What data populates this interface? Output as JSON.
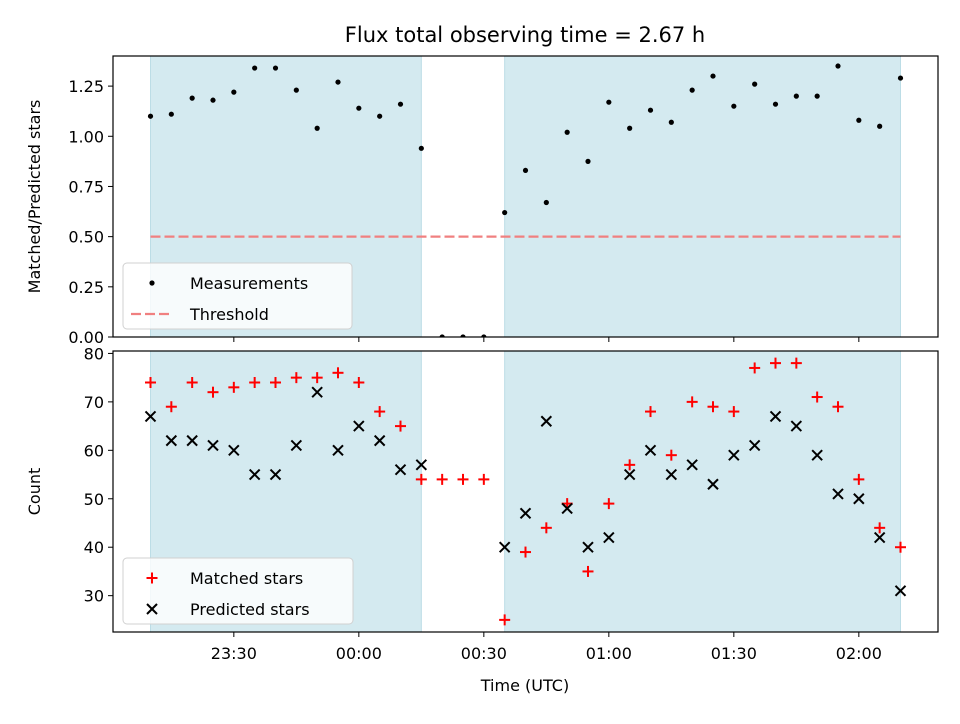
{
  "chart_data": {
    "title": "Flux total observing time = 2.67 h",
    "xlabel": "Time (UTC)",
    "x_unit": "minutes relative to 00:00 UTC",
    "x_ticks": [
      {
        "x": -30,
        "label": "23:30"
      },
      {
        "x": 0,
        "label": "00:00"
      },
      {
        "x": 30,
        "label": "00:30"
      },
      {
        "x": 60,
        "label": "01:00"
      },
      {
        "x": 90,
        "label": "01:30"
      },
      {
        "x": 120,
        "label": "02:00"
      }
    ],
    "xlim": [
      -59,
      139
    ],
    "shaded_intervals": [
      [
        -50,
        15
      ],
      [
        35,
        130
      ]
    ],
    "shade_color": "#d4eaf0",
    "panels": [
      {
        "type": "scatter",
        "ylabel": "Matched/Predicted stars",
        "ylim": [
          0,
          1.4
        ],
        "yticks": [
          0.0,
          0.25,
          0.5,
          0.75,
          1.0,
          1.25
        ],
        "ytick_labels": [
          "0.00",
          "0.25",
          "0.50",
          "0.75",
          "1.00",
          "1.25"
        ],
        "threshold": {
          "y": 0.5,
          "x_range": [
            -50,
            130
          ],
          "color": "#f08080"
        },
        "legend": {
          "position": "lower-left",
          "items": [
            "Measurements",
            "Threshold"
          ]
        },
        "series": [
          {
            "name": "Measurements",
            "color": "#000000",
            "x": [
              -50,
              -45,
              -40,
              -35,
              -30,
              -25,
              -20,
              -15,
              -10,
              -5,
              0,
              5,
              10,
              15,
              20,
              25,
              30,
              35,
              40,
              45,
              50,
              55,
              60,
              65,
              70,
              75,
              80,
              85,
              90,
              95,
              100,
              105,
              110,
              115,
              120,
              125,
              130
            ],
            "y": [
              1.1,
              1.11,
              1.19,
              1.18,
              1.22,
              1.34,
              1.34,
              1.23,
              1.04,
              1.27,
              1.14,
              1.1,
              1.16,
              0.94,
              0,
              0,
              0,
              0.62,
              0.83,
              0.67,
              1.02,
              0.875,
              1.17,
              1.04,
              1.13,
              1.07,
              1.23,
              1.3,
              1.15,
              1.26,
              1.16,
              1.2,
              1.2,
              1.35,
              1.08,
              1.05,
              1.29
            ]
          }
        ]
      },
      {
        "type": "scatter",
        "ylabel": "Count",
        "ylim": [
          22.5,
          80.5
        ],
        "yticks": [
          30,
          40,
          50,
          60,
          70,
          80
        ],
        "ytick_labels": [
          "30",
          "40",
          "50",
          "60",
          "70",
          "80"
        ],
        "legend": {
          "position": "lower-left",
          "items": [
            "Matched stars",
            "Predicted stars"
          ]
        },
        "series": [
          {
            "name": "Matched stars",
            "marker": "+",
            "color": "#ff0000",
            "x": [
              -50,
              -45,
              -40,
              -35,
              -30,
              -25,
              -20,
              -15,
              -10,
              -5,
              0,
              5,
              10,
              15,
              20,
              25,
              30,
              35,
              40,
              45,
              50,
              55,
              60,
              65,
              70,
              75,
              80,
              85,
              90,
              95,
              100,
              105,
              110,
              115,
              120,
              125,
              130
            ],
            "y": [
              74,
              69,
              74,
              72,
              73,
              74,
              74,
              75,
              75,
              76,
              74,
              68,
              65,
              54,
              54,
              54,
              54,
              25,
              39,
              44,
              49,
              35,
              49,
              57,
              68,
              59,
              70,
              69,
              68,
              77,
              78,
              78,
              71,
              69,
              54,
              44,
              40
            ]
          },
          {
            "name": "Predicted stars",
            "marker": "x",
            "color": "#000000",
            "x": [
              -50,
              -45,
              -40,
              -35,
              -30,
              -25,
              -20,
              -15,
              -10,
              -5,
              0,
              5,
              10,
              15,
              35,
              40,
              45,
              50,
              55,
              60,
              65,
              70,
              75,
              80,
              85,
              90,
              95,
              100,
              105,
              110,
              115,
              120,
              125,
              130
            ],
            "y": [
              67,
              62,
              62,
              61,
              60,
              55,
              55,
              61,
              72,
              60,
              65,
              62,
              56,
              57,
              40,
              47,
              66,
              48,
              40,
              42,
              55,
              60,
              55,
              57,
              53,
              59,
              61,
              67,
              65,
              59,
              51,
              50,
              42,
              31
            ]
          }
        ]
      }
    ]
  }
}
